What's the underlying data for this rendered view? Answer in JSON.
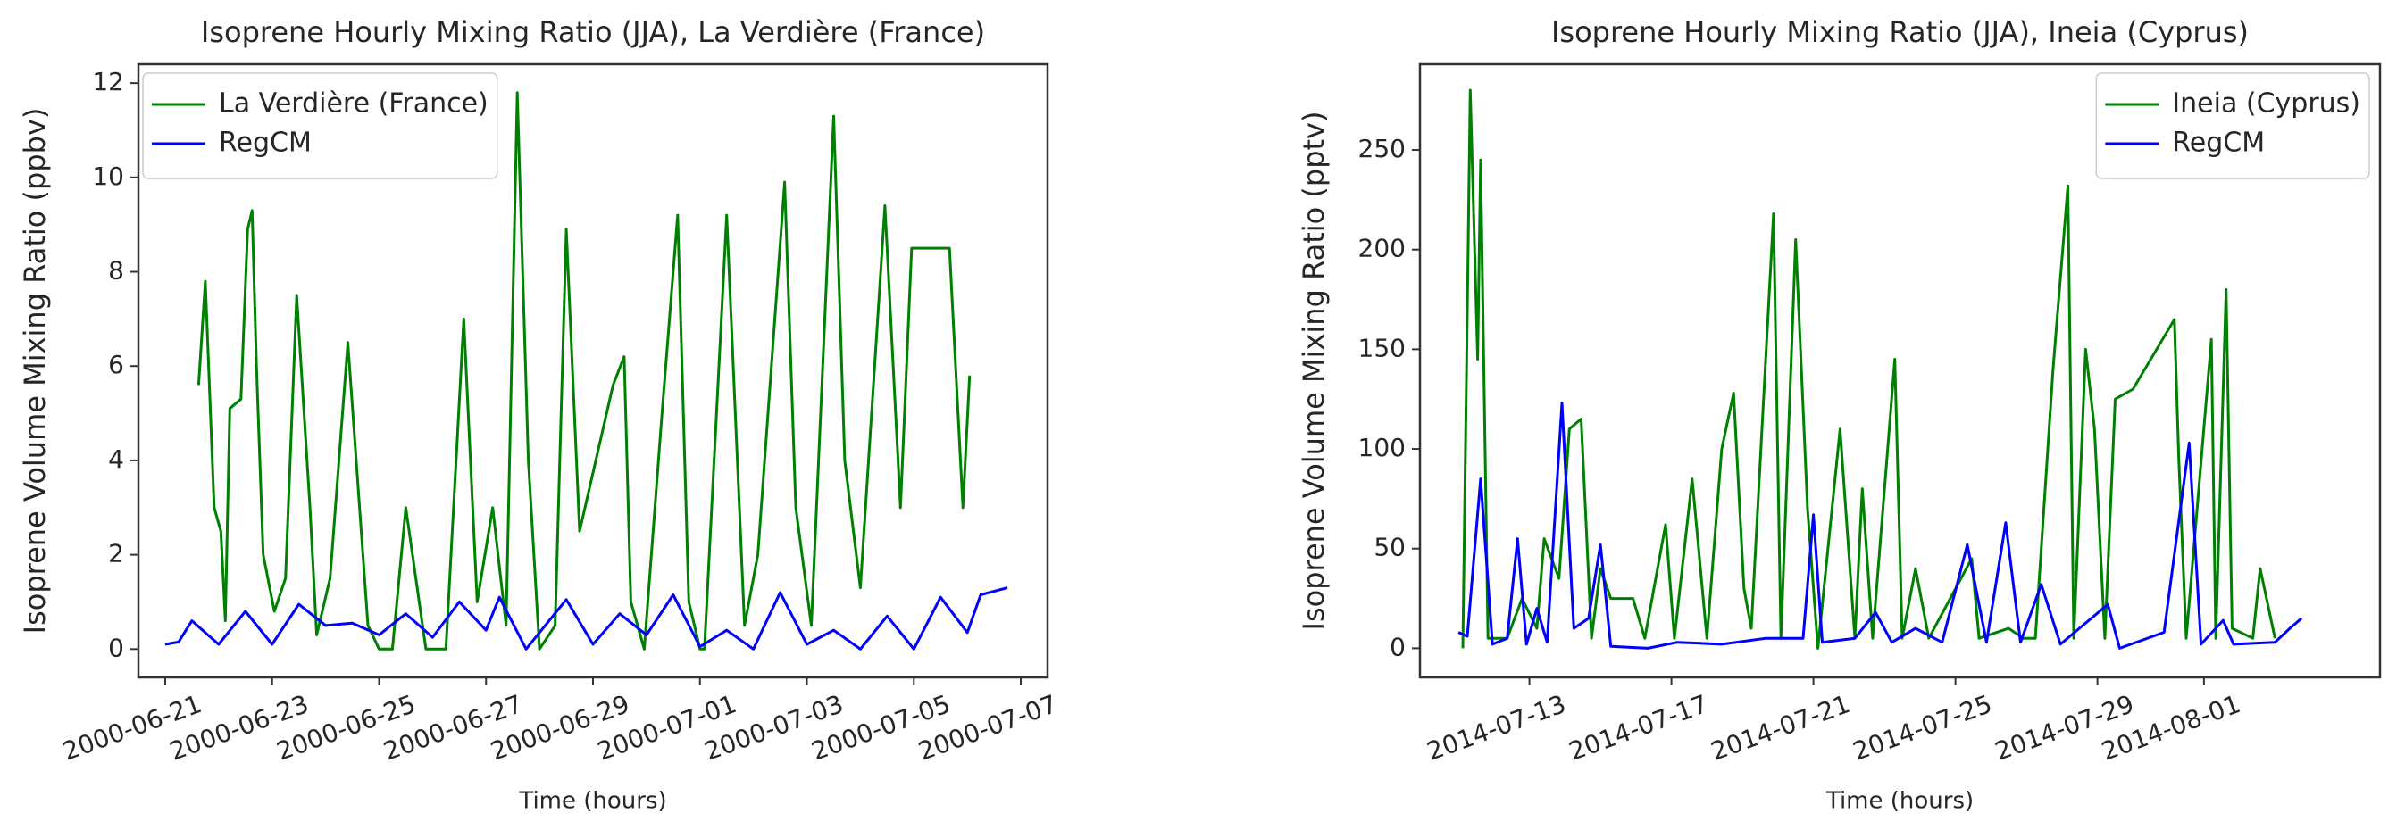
{
  "chart_data": [
    {
      "type": "line",
      "title": "Isoprene Hourly Mixing Ratio (JJA), La Verdière (France)",
      "xlabel": "Time (hours)",
      "ylabel": "Isoprene Volume Mixing Ratio (ppbv)",
      "xlim": [
        "2000-06-20T12:00",
        "2000-07-07T12:00"
      ],
      "xticks": [
        "2000-06-21",
        "2000-06-23",
        "2000-06-25",
        "2000-06-27",
        "2000-06-29",
        "2000-07-01",
        "2000-07-03",
        "2000-07-05",
        "2000-07-07"
      ],
      "ylim": [
        -0.6,
        12.4
      ],
      "yticks": [
        0,
        2,
        4,
        6,
        8,
        10,
        12
      ],
      "legend": "upper left",
      "series": [
        {
          "name": "La Verdière (France)",
          "color": "green",
          "x": [
            "2000-06-21T15:00",
            "2000-06-21T18:00",
            "2000-06-21T22:00",
            "2000-06-22T01:00",
            "2000-06-22T03:00",
            "2000-06-22T05:00",
            "2000-06-22T10:00",
            "2000-06-22T13:00",
            "2000-06-22T15:00",
            "2000-06-22T17:00",
            "2000-06-22T20:00",
            "2000-06-23T01:00",
            "2000-06-23T06:00",
            "2000-06-23T11:00",
            "2000-06-23T17:00",
            "2000-06-23T20:00",
            "2000-06-24T02:00",
            "2000-06-24T10:00",
            "2000-06-24T19:00",
            "2000-06-25T00:00",
            "2000-06-25T06:00",
            "2000-06-25T12:00",
            "2000-06-25T21:00",
            "2000-06-26T06:00",
            "2000-06-26T14:00",
            "2000-06-26T20:00",
            "2000-06-27T03:00",
            "2000-06-27T09:00",
            "2000-06-27T14:00",
            "2000-06-27T19:00",
            "2000-06-28T00:00",
            "2000-06-28T07:00",
            "2000-06-28T12:00",
            "2000-06-28T18:00",
            "2000-06-29T09:00",
            "2000-06-29T14:00",
            "2000-06-29T17:00",
            "2000-06-29T23:00",
            "2000-06-30T07:00",
            "2000-06-30T14:00",
            "2000-06-30T19:00",
            "2000-07-01T00:00",
            "2000-07-01T02:00",
            "2000-07-01T12:00",
            "2000-07-01T20:00",
            "2000-07-02T02:00",
            "2000-07-02T14:00",
            "2000-07-02T19:00",
            "2000-07-03T02:00",
            "2000-07-03T12:00",
            "2000-07-03T17:00",
            "2000-07-04T00:00",
            "2000-07-04T11:00",
            "2000-07-04T18:00",
            "2000-07-04T23:00",
            "2000-07-05T16:00",
            "2000-07-05T22:00",
            "2000-07-06T01:00"
          ],
          "values": [
            5.6,
            7.8,
            3.0,
            2.5,
            0.6,
            5.1,
            5.3,
            8.9,
            9.3,
            6.0,
            2.0,
            0.8,
            1.5,
            7.5,
            3.0,
            0.3,
            1.5,
            6.5,
            0.5,
            0.0,
            0.0,
            3.0,
            0.0,
            0.0,
            7.0,
            1.0,
            3.0,
            0.5,
            11.8,
            4.0,
            0.0,
            0.5,
            8.9,
            2.5,
            5.6,
            6.2,
            1.0,
            0.0,
            5.0,
            9.2,
            1.0,
            0.0,
            0.0,
            9.2,
            0.5,
            2.0,
            9.9,
            3.0,
            0.5,
            11.3,
            4.0,
            1.3,
            9.4,
            3.0,
            8.5,
            8.5,
            3.0,
            5.8
          ]
        },
        {
          "name": "RegCM",
          "color": "blue",
          "x": [
            "2000-06-21T00:00",
            "2000-06-21T06:00",
            "2000-06-21T12:00",
            "2000-06-22T00:00",
            "2000-06-22T12:00",
            "2000-06-23T00:00",
            "2000-06-23T12:00",
            "2000-06-24T00:00",
            "2000-06-24T12:00",
            "2000-06-25T00:00",
            "2000-06-25T12:00",
            "2000-06-26T00:00",
            "2000-06-26T12:00",
            "2000-06-27T00:00",
            "2000-06-27T06:00",
            "2000-06-27T18:00",
            "2000-06-28T12:00",
            "2000-06-29T00:00",
            "2000-06-29T12:00",
            "2000-06-30T00:00",
            "2000-06-30T12:00",
            "2000-07-01T00:00",
            "2000-07-01T12:00",
            "2000-07-02T00:00",
            "2000-07-02T12:00",
            "2000-07-03T00:00",
            "2000-07-03T12:00",
            "2000-07-04T00:00",
            "2000-07-04T12:00",
            "2000-07-05T00:00",
            "2000-07-05T12:00",
            "2000-07-06T00:00",
            "2000-07-06T06:00",
            "2000-07-06T18:00"
          ],
          "values": [
            0.1,
            0.15,
            0.6,
            0.1,
            0.8,
            0.1,
            0.95,
            0.5,
            0.55,
            0.3,
            0.75,
            0.25,
            1.0,
            0.4,
            1.1,
            0.0,
            1.05,
            0.1,
            0.75,
            0.3,
            1.15,
            0.05,
            0.4,
            0.0,
            1.2,
            0.1,
            0.4,
            0.0,
            0.7,
            0.0,
            1.1,
            0.35,
            1.15,
            1.3
          ]
        }
      ]
    },
    {
      "type": "line",
      "title": "Isoprene Hourly Mixing Ratio (JJA), Ineia (Cyprus)",
      "xlabel": "Time (hours)",
      "ylabel": "Isoprene Volume Mixing Ratio (pptv)",
      "xlim": [
        "2014-07-09T22:00",
        "2014-08-05T23:00"
      ],
      "xticks": [
        "2014-07-13",
        "2014-07-17",
        "2014-07-21",
        "2014-07-25",
        "2014-07-29",
        "2014-08-01"
      ],
      "ylim": [
        -14.6,
        293
      ],
      "yticks": [
        0,
        50,
        100,
        150,
        200,
        250
      ],
      "legend": "upper right",
      "series": [
        {
          "name": "Ineia (Cyprus)",
          "color": "green",
          "x": [
            "2014-07-11T03:00",
            "2014-07-11T08:00",
            "2014-07-11T13:00",
            "2014-07-11T15:00",
            "2014-07-11T20:00",
            "2014-07-12T09:00",
            "2014-07-12T19:00",
            "2014-07-13T05:00",
            "2014-07-13T10:00",
            "2014-07-13T20:00",
            "2014-07-14T03:00",
            "2014-07-14T11:00",
            "2014-07-14T18:00",
            "2014-07-15T00:00",
            "2014-07-15T07:00",
            "2014-07-15T22:00",
            "2014-07-16T06:00",
            "2014-07-16T20:00",
            "2014-07-17T02:00",
            "2014-07-17T14:00",
            "2014-07-18T00:00",
            "2014-07-18T10:00",
            "2014-07-18T18:00",
            "2014-07-19T01:00",
            "2014-07-19T06:00",
            "2014-07-19T21:00",
            "2014-07-20T02:00",
            "2014-07-20T12:00",
            "2014-07-20T20:00",
            "2014-07-21T03:00",
            "2014-07-21T18:00",
            "2014-07-22T04:00",
            "2014-07-22T09:00",
            "2014-07-22T16:00",
            "2014-07-23T07:00",
            "2014-07-23T12:00",
            "2014-07-23T21:00",
            "2014-07-24T06:00",
            "2014-07-25T11:00",
            "2014-07-25T16:00",
            "2014-07-26T12:00",
            "2014-07-26T22:00",
            "2014-07-27T06:00",
            "2014-07-27T18:00",
            "2014-07-28T04:00",
            "2014-07-28T08:00",
            "2014-07-28T16:00",
            "2014-07-28T22:00",
            "2014-07-29T05:00",
            "2014-07-29T12:00",
            "2014-07-30T00:00",
            "2014-07-31T04:00",
            "2014-07-31T07:00",
            "2014-07-31T12:00",
            "2014-08-01T05:00",
            "2014-08-01T08:00",
            "2014-08-01T15:00",
            "2014-08-01T19:00",
            "2014-08-02T09:00",
            "2014-08-02T14:00",
            "2014-08-03T00:00"
          ],
          "values": [
            0,
            280,
            145,
            245,
            5,
            5,
            25,
            10,
            55,
            35,
            110,
            115,
            5,
            40,
            25,
            25,
            5,
            62,
            5,
            85,
            5,
            100,
            128,
            30,
            10,
            218,
            5,
            205,
            70,
            0,
            110,
            5,
            80,
            5,
            145,
            5,
            40,
            5,
            45,
            5,
            10,
            5,
            5,
            140,
            232,
            5,
            150,
            110,
            5,
            125,
            130,
            165,
            95,
            5,
            155,
            5,
            180,
            10,
            5,
            40,
            5
          ]
        },
        {
          "name": "RegCM",
          "color": "blue",
          "x": [
            "2014-07-11T00:00",
            "2014-07-11T06:00",
            "2014-07-11T15:00",
            "2014-07-11T23:00",
            "2014-07-12T09:00",
            "2014-07-12T16:00",
            "2014-07-12T22:00",
            "2014-07-13T05:00",
            "2014-07-13T12:00",
            "2014-07-13T22:00",
            "2014-07-14T06:00",
            "2014-07-14T16:00",
            "2014-07-15T00:00",
            "2014-07-15T07:00",
            "2014-07-16T08:00",
            "2014-07-17T04:00",
            "2014-07-18T10:00",
            "2014-07-19T16:00",
            "2014-07-20T17:00",
            "2014-07-21T00:00",
            "2014-07-21T06:00",
            "2014-07-22T04:00",
            "2014-07-22T18:00",
            "2014-07-23T05:00",
            "2014-07-23T21:00",
            "2014-07-24T15:00",
            "2014-07-25T08:00",
            "2014-07-25T21:00",
            "2014-07-26T10:00",
            "2014-07-26T20:00",
            "2014-07-27T10:00",
            "2014-07-27T23:00",
            "2014-07-29T07:00",
            "2014-07-29T15:00",
            "2014-07-30T21:00",
            "2014-07-31T14:00",
            "2014-07-31T22:00",
            "2014-08-01T13:00",
            "2014-08-01T20:00",
            "2014-08-03T00:00",
            "2014-08-03T10:00",
            "2014-08-03T18:00"
          ],
          "values": [
            8,
            6,
            85,
            2,
            5,
            55,
            2,
            20,
            3,
            123,
            10,
            15,
            52,
            1,
            0,
            3,
            2,
            5,
            5,
            67,
            3,
            5,
            18,
            3,
            10,
            3,
            52,
            3,
            63,
            3,
            32,
            2,
            22,
            0,
            8,
            103,
            2,
            14,
            2,
            3,
            10,
            15
          ]
        }
      ]
    }
  ]
}
